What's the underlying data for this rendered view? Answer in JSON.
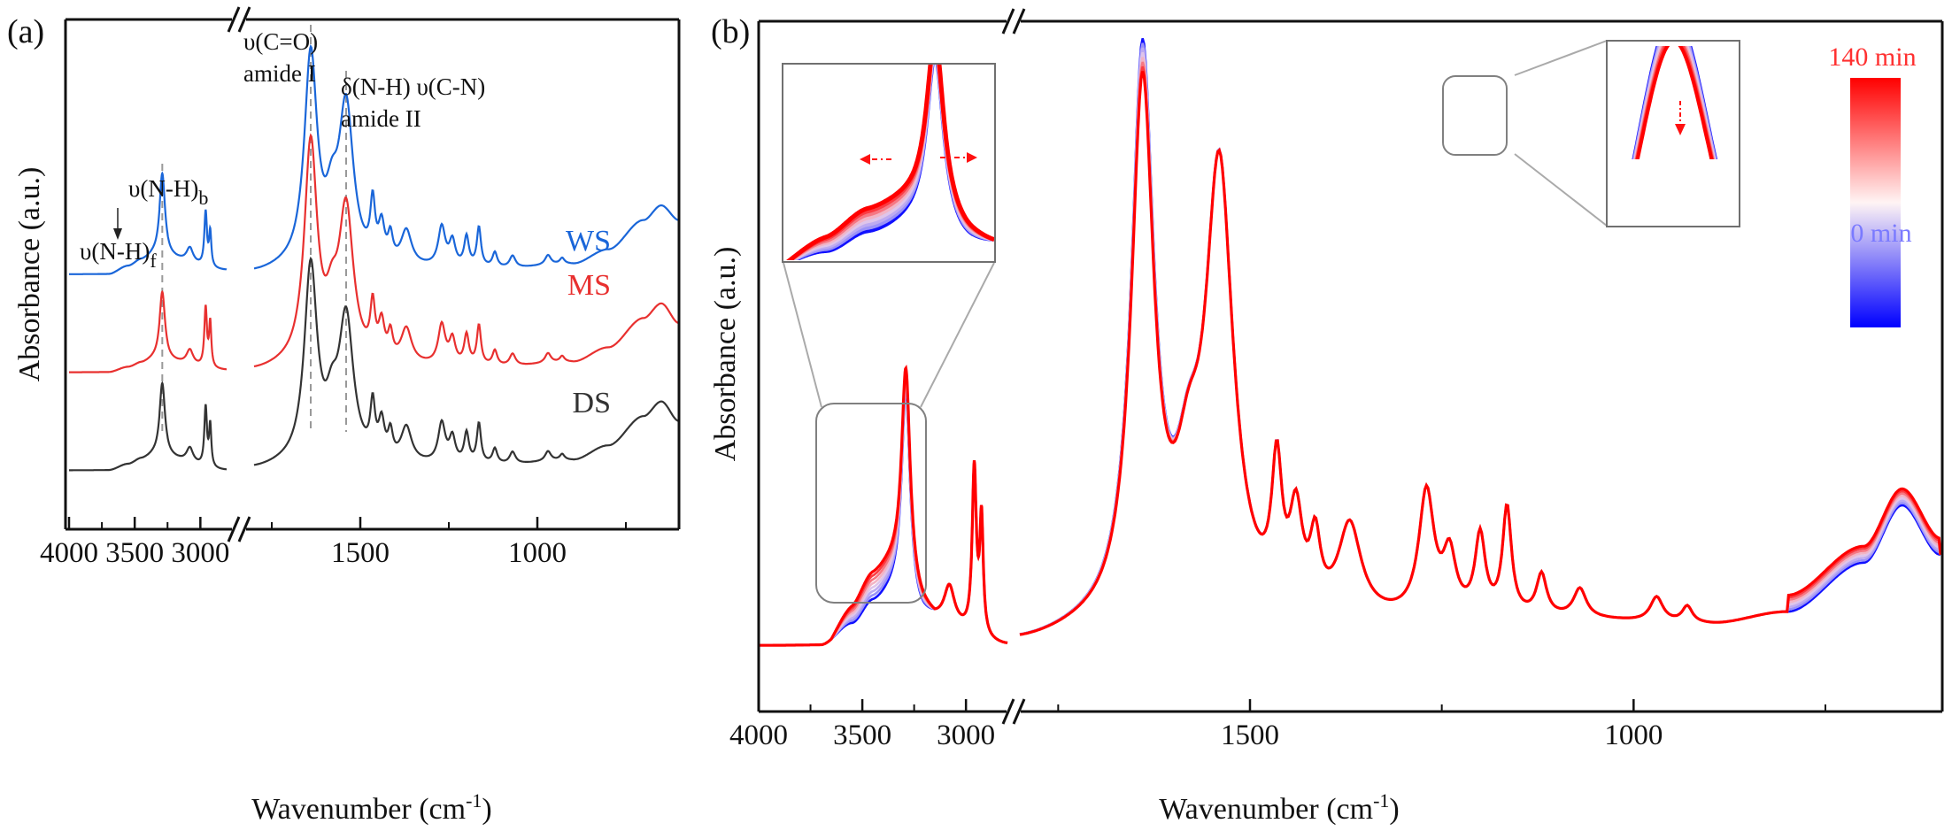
{
  "chart_data": [
    {
      "panel": "(a)",
      "type": "line",
      "xlabel": "Wavenumber (cm-1)",
      "xlabel_parts": {
        "main": "Wavenumber (cm",
        "sup": "-1",
        "close": ")"
      },
      "ylabel": "Absorbance (a.u.)",
      "x_axis": {
        "reversed": true,
        "broken": true,
        "segments": [
          [
            4000,
            2800
          ],
          [
            1800,
            600
          ]
        ],
        "ticks": [
          4000,
          3500,
          3000,
          1500,
          1000
        ],
        "minor_ticks": [
          3750,
          3250,
          2750,
          1750,
          1250,
          750
        ]
      },
      "y_ticks_shown": false,
      "series": [
        {
          "name": "WS",
          "color": "#1a66d9",
          "offset": 2.0,
          "baseline": [
            [
              4000,
              0.0
            ],
            [
              3700,
              0.0
            ],
            [
              3550,
              0.08
            ],
            [
              3450,
              0.14
            ],
            [
              3350,
              0.18
            ],
            [
              2800,
              0.04
            ],
            [
              1800,
              0.0
            ],
            [
              1700,
              0.03
            ],
            [
              1100,
              0.05
            ],
            [
              900,
              0.1
            ],
            [
              800,
              0.25
            ],
            [
              700,
              0.55
            ],
            [
              650,
              0.7
            ],
            [
              600,
              0.55
            ]
          ],
          "peaks": [
            [
              3290,
              0.85,
              25
            ],
            [
              3080,
              0.15,
              30
            ],
            [
              2960,
              0.55,
              12
            ],
            [
              2925,
              0.35,
              10
            ],
            [
              1640,
              2.15,
              22
            ],
            [
              1540,
              1.6,
              25
            ],
            [
              1580,
              0.45,
              20
            ],
            [
              1465,
              0.55,
              8
            ],
            [
              1440,
              0.35,
              10
            ],
            [
              1415,
              0.25,
              8
            ],
            [
              1370,
              0.35,
              18
            ],
            [
              1270,
              0.4,
              12
            ],
            [
              1240,
              0.25,
              10
            ],
            [
              1200,
              0.3,
              8
            ],
            [
              1165,
              0.4,
              7
            ],
            [
              1120,
              0.15,
              8
            ],
            [
              1070,
              0.12,
              10
            ],
            [
              970,
              0.1,
              10
            ],
            [
              930,
              0.06,
              8
            ]
          ]
        },
        {
          "name": "MS",
          "color": "#e8302f",
          "offset": 1.0,
          "baseline": [
            [
              4000,
              0.0
            ],
            [
              3700,
              0.0
            ],
            [
              3550,
              0.05
            ],
            [
              3450,
              0.09
            ],
            [
              3350,
              0.12
            ],
            [
              2800,
              0.02
            ],
            [
              1800,
              0.0
            ],
            [
              1700,
              0.03
            ],
            [
              1100,
              0.05
            ],
            [
              900,
              0.1
            ],
            [
              800,
              0.25
            ],
            [
              700,
              0.55
            ],
            [
              650,
              0.7
            ],
            [
              600,
              0.5
            ]
          ],
          "peaks": [
            [
              3290,
              0.7,
              25
            ],
            [
              3080,
              0.15,
              30
            ],
            [
              2960,
              0.6,
              12
            ],
            [
              2925,
              0.45,
              10
            ],
            [
              1640,
              2.25,
              22
            ],
            [
              1540,
              1.55,
              25
            ],
            [
              1580,
              0.4,
              20
            ],
            [
              1465,
              0.5,
              8
            ],
            [
              1440,
              0.35,
              10
            ],
            [
              1415,
              0.25,
              8
            ],
            [
              1370,
              0.35,
              18
            ],
            [
              1270,
              0.4,
              12
            ],
            [
              1240,
              0.25,
              10
            ],
            [
              1200,
              0.3,
              8
            ],
            [
              1165,
              0.4,
              7
            ],
            [
              1120,
              0.15,
              8
            ],
            [
              1070,
              0.12,
              10
            ],
            [
              970,
              0.1,
              10
            ],
            [
              930,
              0.06,
              8
            ]
          ]
        },
        {
          "name": "DS",
          "color": "#333333",
          "offset": 0.0,
          "baseline": [
            [
              4000,
              0.0
            ],
            [
              3700,
              0.0
            ],
            [
              3550,
              0.06
            ],
            [
              3450,
              0.11
            ],
            [
              3350,
              0.14
            ],
            [
              2800,
              0.0
            ],
            [
              1800,
              0.0
            ],
            [
              1700,
              0.03
            ],
            [
              1100,
              0.05
            ],
            [
              900,
              0.1
            ],
            [
              800,
              0.25
            ],
            [
              700,
              0.55
            ],
            [
              650,
              0.7
            ],
            [
              600,
              0.5
            ]
          ],
          "peaks": [
            [
              3290,
              0.75,
              25
            ],
            [
              3080,
              0.15,
              30
            ],
            [
              2960,
              0.6,
              12
            ],
            [
              2925,
              0.42,
              10
            ],
            [
              1640,
              2.0,
              22
            ],
            [
              1540,
              1.45,
              25
            ],
            [
              1580,
              0.4,
              20
            ],
            [
              1465,
              0.5,
              8
            ],
            [
              1440,
              0.35,
              10
            ],
            [
              1415,
              0.25,
              8
            ],
            [
              1370,
              0.35,
              18
            ],
            [
              1270,
              0.4,
              12
            ],
            [
              1240,
              0.25,
              10
            ],
            [
              1200,
              0.3,
              8
            ],
            [
              1165,
              0.4,
              7
            ],
            [
              1120,
              0.15,
              8
            ],
            [
              1070,
              0.12,
              10
            ],
            [
              970,
              0.1,
              10
            ],
            [
              930,
              0.06,
              8
            ]
          ]
        }
      ],
      "annotations": [
        {
          "id": "nh-b",
          "text_main": "υ(N-H)",
          "text_sub": "b",
          "x": 3290
        },
        {
          "id": "nh-f",
          "text_main": "υ(N-H)",
          "text_sub": "f",
          "x": 3530
        },
        {
          "id": "co",
          "text": "υ(C=O)",
          "x": 1640
        },
        {
          "id": "amide1",
          "text": "amide I",
          "x": 1640
        },
        {
          "id": "nh-cn",
          "text": "δ(N-H) υ(C-N)",
          "x": 1540
        },
        {
          "id": "amide2",
          "text": "amide II",
          "x": 1540
        }
      ],
      "reference_lines": [
        3290,
        1640,
        1540
      ],
      "ylim": [
        -0.6,
        4.6
      ]
    },
    {
      "panel": "(b)",
      "type": "line",
      "xlabel": "Wavenumber (cm-1)",
      "xlabel_parts": {
        "main": "Wavenumber (cm",
        "sup": "-1",
        "close": ")"
      },
      "ylabel": "Absorbance (a.u.)",
      "x_axis": {
        "reversed": true,
        "broken": true,
        "segments": [
          [
            4000,
            2800
          ],
          [
            1800,
            600
          ]
        ],
        "ticks": [
          4000,
          3500,
          3000,
          1500,
          1000
        ],
        "minor_ticks": [
          3750,
          3250,
          2750,
          1750,
          1250,
          750
        ]
      },
      "y_ticks_shown": false,
      "time_series": {
        "start_min": 0,
        "end_min": 140,
        "start_color": "#1010ff",
        "end_color": "#ff0000",
        "count": 8,
        "trend": "N-H shoulder (3500-3300) and broad region rise with time; amide I peak decreases slightly"
      },
      "spectrum": {
        "baseline": [
          [
            4000,
            0.0
          ],
          [
            3700,
            0.0
          ],
          [
            3550,
            0.25
          ],
          [
            3450,
            0.5
          ],
          [
            3350,
            0.6
          ],
          [
            3200,
            0.3
          ],
          [
            2800,
            0.0
          ],
          [
            1800,
            0.0
          ],
          [
            1700,
            0.1
          ],
          [
            1100,
            0.3
          ],
          [
            900,
            0.25
          ],
          [
            800,
            0.4
          ],
          [
            700,
            1.0
          ],
          [
            650,
            1.7
          ],
          [
            600,
            1.1
          ]
        ],
        "peaks": [
          [
            3290,
            2.6,
            25
          ],
          [
            3080,
            0.45,
            30
          ],
          [
            2960,
            2.0,
            12
          ],
          [
            2925,
            1.4,
            10
          ],
          [
            1640,
            6.9,
            18
          ],
          [
            1540,
            5.4,
            22
          ],
          [
            1580,
            1.2,
            20
          ],
          [
            1465,
            1.6,
            8
          ],
          [
            1440,
            1.1,
            10
          ],
          [
            1415,
            0.8,
            8
          ],
          [
            1370,
            1.1,
            18
          ],
          [
            1270,
            1.5,
            12
          ],
          [
            1240,
            0.7,
            10
          ],
          [
            1200,
            0.95,
            8
          ],
          [
            1165,
            1.3,
            7
          ],
          [
            1120,
            0.5,
            8
          ],
          [
            1070,
            0.35,
            10
          ],
          [
            970,
            0.3,
            10
          ],
          [
            930,
            0.2,
            8
          ]
        ],
        "changes_over_time": {
          "shoulder_rise": 0.35,
          "amide1_drop": 0.4,
          "lowfreq_rise": 0.2
        }
      },
      "colorbar": {
        "top_label": "140 min",
        "bottom_label": "0 min",
        "top_color": "#ff3030",
        "bottom_color": "#7a7aff"
      },
      "insets": [
        {
          "id": "nh-region",
          "x_range": [
            3650,
            3150
          ],
          "arrows": "bidirectional-horizontal"
        },
        {
          "id": "amide1-peak",
          "x_range": [
            1680,
            1600
          ],
          "arrows": "down"
        }
      ],
      "ylim": [
        -0.8,
        7.6
      ]
    }
  ]
}
